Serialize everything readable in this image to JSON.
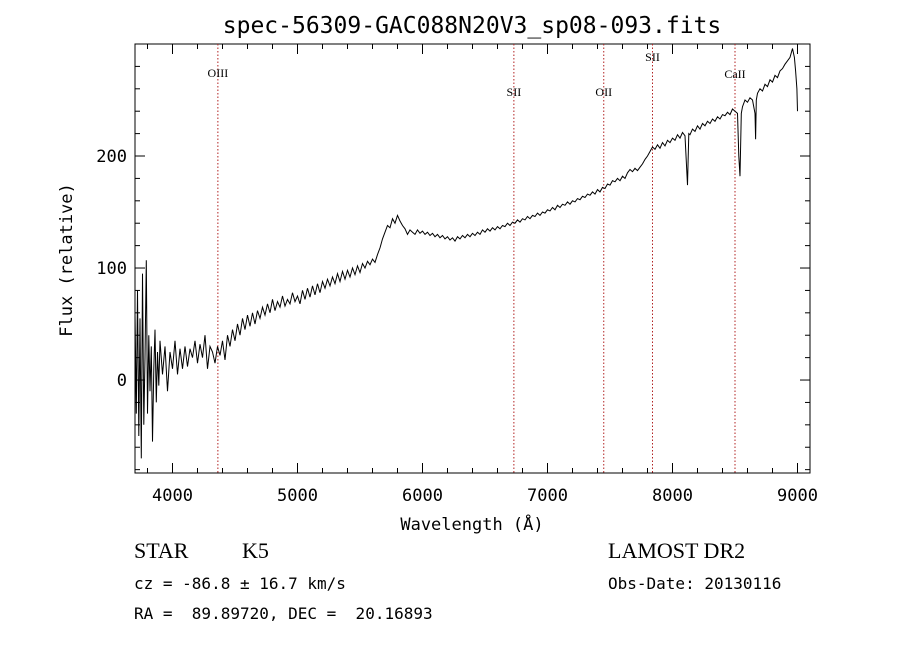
{
  "chart_data": {
    "type": "line",
    "title": "spec-56309-GAC088N20V3_sp08-093.fits",
    "xlabel": "Wavelength (Å)",
    "ylabel": "Flux (relative)",
    "xlim": [
      3700,
      9100
    ],
    "ylim": [
      -83,
      300
    ],
    "xticks": [
      4000,
      5000,
      6000,
      7000,
      8000,
      9000
    ],
    "yticks": [
      0,
      100,
      200
    ],
    "grid": false,
    "series": [
      {
        "color": "#000000",
        "points": [
          [
            3700,
            60
          ],
          [
            3710,
            -30
          ],
          [
            3720,
            80
          ],
          [
            3730,
            -50
          ],
          [
            3740,
            55
          ],
          [
            3750,
            -70
          ],
          [
            3760,
            95
          ],
          [
            3770,
            -40
          ],
          [
            3780,
            20
          ],
          [
            3790,
            107
          ],
          [
            3800,
            -30
          ],
          [
            3810,
            40
          ],
          [
            3820,
            -10
          ],
          [
            3830,
            30
          ],
          [
            3840,
            -55
          ],
          [
            3850,
            10
          ],
          [
            3860,
            45
          ],
          [
            3870,
            -20
          ],
          [
            3880,
            25
          ],
          [
            3890,
            -5
          ],
          [
            3900,
            35
          ],
          [
            3920,
            5
          ],
          [
            3940,
            30
          ],
          [
            3960,
            -10
          ],
          [
            3980,
            25
          ],
          [
            4000,
            10
          ],
          [
            4020,
            35
          ],
          [
            4040,
            5
          ],
          [
            4060,
            28
          ],
          [
            4080,
            10
          ],
          [
            4100,
            30
          ],
          [
            4120,
            12
          ],
          [
            4140,
            28
          ],
          [
            4160,
            20
          ],
          [
            4180,
            35
          ],
          [
            4200,
            15
          ],
          [
            4220,
            32
          ],
          [
            4240,
            20
          ],
          [
            4260,
            40
          ],
          [
            4280,
            10
          ],
          [
            4300,
            30
          ],
          [
            4320,
            25
          ],
          [
            4340,
            15
          ],
          [
            4360,
            30
          ],
          [
            4380,
            22
          ],
          [
            4400,
            35
          ],
          [
            4420,
            18
          ],
          [
            4440,
            40
          ],
          [
            4460,
            30
          ],
          [
            4480,
            45
          ],
          [
            4500,
            35
          ],
          [
            4520,
            50
          ],
          [
            4540,
            40
          ],
          [
            4560,
            55
          ],
          [
            4580,
            45
          ],
          [
            4600,
            58
          ],
          [
            4620,
            48
          ],
          [
            4640,
            60
          ],
          [
            4660,
            50
          ],
          [
            4680,
            62
          ],
          [
            4700,
            55
          ],
          [
            4720,
            65
          ],
          [
            4740,
            58
          ],
          [
            4760,
            68
          ],
          [
            4780,
            60
          ],
          [
            4800,
            72
          ],
          [
            4820,
            62
          ],
          [
            4840,
            70
          ],
          [
            4860,
            65
          ],
          [
            4880,
            75
          ],
          [
            4900,
            66
          ],
          [
            4920,
            72
          ],
          [
            4940,
            68
          ],
          [
            4960,
            78
          ],
          [
            4980,
            70
          ],
          [
            5000,
            75
          ],
          [
            5020,
            68
          ],
          [
            5040,
            80
          ],
          [
            5060,
            72
          ],
          [
            5080,
            82
          ],
          [
            5100,
            74
          ],
          [
            5120,
            84
          ],
          [
            5140,
            76
          ],
          [
            5160,
            86
          ],
          [
            5180,
            78
          ],
          [
            5200,
            88
          ],
          [
            5220,
            82
          ],
          [
            5240,
            90
          ],
          [
            5260,
            84
          ],
          [
            5280,
            92
          ],
          [
            5300,
            86
          ],
          [
            5320,
            95
          ],
          [
            5340,
            88
          ],
          [
            5360,
            97
          ],
          [
            5380,
            90
          ],
          [
            5400,
            98
          ],
          [
            5420,
            92
          ],
          [
            5440,
            100
          ],
          [
            5460,
            94
          ],
          [
            5480,
            102
          ],
          [
            5500,
            96
          ],
          [
            5520,
            104
          ],
          [
            5540,
            100
          ],
          [
            5560,
            106
          ],
          [
            5580,
            103
          ],
          [
            5600,
            108
          ],
          [
            5620,
            105
          ],
          [
            5640,
            112
          ],
          [
            5660,
            118
          ],
          [
            5680,
            126
          ],
          [
            5700,
            132
          ],
          [
            5720,
            138
          ],
          [
            5740,
            136
          ],
          [
            5760,
            144
          ],
          [
            5780,
            140
          ],
          [
            5800,
            147
          ],
          [
            5820,
            142
          ],
          [
            5840,
            138
          ],
          [
            5860,
            135
          ],
          [
            5880,
            130
          ],
          [
            5900,
            134
          ],
          [
            5920,
            132
          ],
          [
            5940,
            130
          ],
          [
            5960,
            134
          ],
          [
            5980,
            131
          ],
          [
            6000,
            133
          ],
          [
            6020,
            130
          ],
          [
            6040,
            132
          ],
          [
            6060,
            129
          ],
          [
            6080,
            131
          ],
          [
            6100,
            128
          ],
          [
            6120,
            130
          ],
          [
            6140,
            127
          ],
          [
            6160,
            129
          ],
          [
            6180,
            126
          ],
          [
            6200,
            128
          ],
          [
            6220,
            125
          ],
          [
            6240,
            127
          ],
          [
            6260,
            124
          ],
          [
            6280,
            128
          ],
          [
            6300,
            126
          ],
          [
            6320,
            129
          ],
          [
            6340,
            127
          ],
          [
            6360,
            130
          ],
          [
            6380,
            128
          ],
          [
            6400,
            131
          ],
          [
            6420,
            129
          ],
          [
            6440,
            132
          ],
          [
            6460,
            130
          ],
          [
            6480,
            134
          ],
          [
            6500,
            132
          ],
          [
            6520,
            135
          ],
          [
            6540,
            133
          ],
          [
            6560,
            136
          ],
          [
            6580,
            134
          ],
          [
            6600,
            137
          ],
          [
            6620,
            135
          ],
          [
            6640,
            138
          ],
          [
            6660,
            137
          ],
          [
            6680,
            140
          ],
          [
            6700,
            138
          ],
          [
            6720,
            141
          ],
          [
            6740,
            140
          ],
          [
            6760,
            143
          ],
          [
            6780,
            141
          ],
          [
            6800,
            144
          ],
          [
            6820,
            143
          ],
          [
            6840,
            146
          ],
          [
            6860,
            144
          ],
          [
            6880,
            147
          ],
          [
            6900,
            146
          ],
          [
            6920,
            149
          ],
          [
            6940,
            147
          ],
          [
            6960,
            150
          ],
          [
            6980,
            149
          ],
          [
            7000,
            152
          ],
          [
            7020,
            151
          ],
          [
            7040,
            154
          ],
          [
            7060,
            152
          ],
          [
            7080,
            156
          ],
          [
            7100,
            154
          ],
          [
            7120,
            157
          ],
          [
            7140,
            156
          ],
          [
            7160,
            159
          ],
          [
            7180,
            157
          ],
          [
            7200,
            160
          ],
          [
            7220,
            159
          ],
          [
            7240,
            162
          ],
          [
            7260,
            161
          ],
          [
            7280,
            164
          ],
          [
            7300,
            163
          ],
          [
            7320,
            166
          ],
          [
            7340,
            165
          ],
          [
            7360,
            168
          ],
          [
            7380,
            166
          ],
          [
            7400,
            170
          ],
          [
            7420,
            168
          ],
          [
            7440,
            172
          ],
          [
            7460,
            171
          ],
          [
            7480,
            175
          ],
          [
            7500,
            174
          ],
          [
            7520,
            178
          ],
          [
            7540,
            177
          ],
          [
            7560,
            180
          ],
          [
            7580,
            178
          ],
          [
            7600,
            182
          ],
          [
            7620,
            180
          ],
          [
            7640,
            185
          ],
          [
            7660,
            188
          ],
          [
            7680,
            186
          ],
          [
            7700,
            189
          ],
          [
            7720,
            187
          ],
          [
            7740,
            190
          ],
          [
            7760,
            193
          ],
          [
            7780,
            197
          ],
          [
            7800,
            200
          ],
          [
            7820,
            204
          ],
          [
            7840,
            208
          ],
          [
            7860,
            206
          ],
          [
            7880,
            210
          ],
          [
            7900,
            207
          ],
          [
            7920,
            212
          ],
          [
            7940,
            209
          ],
          [
            7960,
            214
          ],
          [
            7980,
            212
          ],
          [
            8000,
            216
          ],
          [
            8020,
            214
          ],
          [
            8040,
            219
          ],
          [
            8060,
            216
          ],
          [
            8080,
            221
          ],
          [
            8100,
            218
          ],
          [
            8120,
            174
          ],
          [
            8130,
            220
          ],
          [
            8140,
            219
          ],
          [
            8160,
            224
          ],
          [
            8180,
            222
          ],
          [
            8200,
            227
          ],
          [
            8220,
            224
          ],
          [
            8240,
            229
          ],
          [
            8260,
            227
          ],
          [
            8280,
            231
          ],
          [
            8300,
            229
          ],
          [
            8320,
            233
          ],
          [
            8340,
            231
          ],
          [
            8360,
            235
          ],
          [
            8380,
            233
          ],
          [
            8400,
            237
          ],
          [
            8420,
            236
          ],
          [
            8440,
            239
          ],
          [
            8460,
            237
          ],
          [
            8480,
            242
          ],
          [
            8500,
            240
          ],
          [
            8520,
            238
          ],
          [
            8530,
            200
          ],
          [
            8540,
            182
          ],
          [
            8550,
            238
          ],
          [
            8560,
            244
          ],
          [
            8580,
            250
          ],
          [
            8600,
            248
          ],
          [
            8620,
            252
          ],
          [
            8640,
            250
          ],
          [
            8660,
            238
          ],
          [
            8665,
            215
          ],
          [
            8670,
            250
          ],
          [
            8680,
            256
          ],
          [
            8700,
            260
          ],
          [
            8720,
            258
          ],
          [
            8740,
            264
          ],
          [
            8760,
            262
          ],
          [
            8780,
            268
          ],
          [
            8800,
            266
          ],
          [
            8820,
            272
          ],
          [
            8840,
            270
          ],
          [
            8860,
            276
          ],
          [
            8880,
            278
          ],
          [
            8900,
            282
          ],
          [
            8920,
            285
          ],
          [
            8940,
            288
          ],
          [
            8960,
            296
          ],
          [
            8975,
            288
          ],
          [
            8985,
            276
          ],
          [
            8995,
            260
          ],
          [
            9000,
            240
          ]
        ]
      }
    ],
    "lines": [
      {
        "label": "OIII",
        "x": 4363
      },
      {
        "label": "SII",
        "x": 6731
      },
      {
        "label": "OII",
        "x": 7450
      },
      {
        "label": "SII",
        "x": 7840
      },
      {
        "label": "CaII",
        "x": 8500
      }
    ],
    "line_color": "#b22222"
  },
  "info": {
    "class": "STAR",
    "subclass": "K5",
    "survey": "LAMOST DR2",
    "cz": "cz = -86.8 ± 16.7 km/s",
    "obs_date": "Obs-Date: 20130116",
    "radec": "RA =  89.89720, DEC =  20.16893"
  }
}
